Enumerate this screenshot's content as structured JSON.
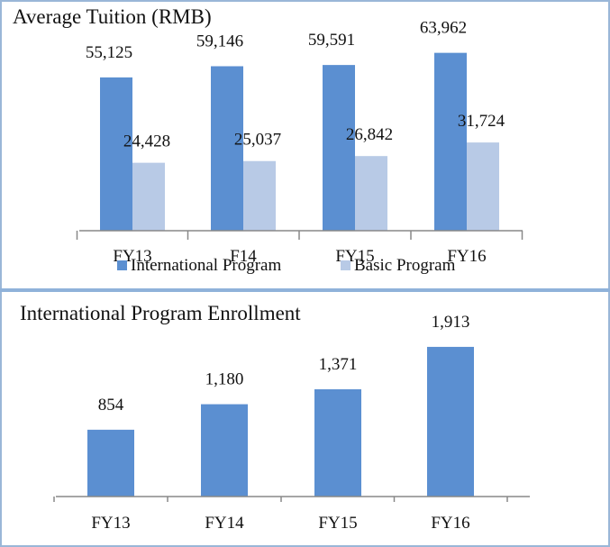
{
  "chart_data": [
    {
      "type": "bar",
      "title": "Average Tuition (RMB)",
      "categories": [
        "FY13",
        "F14",
        "FY15",
        "FY16"
      ],
      "series": [
        {
          "name": "International Program",
          "color": "#5b8fd1",
          "values": [
            55125,
            59146,
            59591,
            63962
          ],
          "labels": [
            "55,125",
            "59,146",
            "59,591",
            "63,962"
          ]
        },
        {
          "name": "Basic Program",
          "color": "#b8cae6",
          "values": [
            24428,
            25037,
            26842,
            31724
          ],
          "labels": [
            "24,428",
            "25,037",
            "26,842",
            "31,724"
          ]
        }
      ],
      "ylim": [
        0,
        70000
      ],
      "grid": false,
      "legend": "bottom"
    },
    {
      "type": "bar",
      "title": "International Program Enrollment",
      "categories": [
        "FY13",
        "FY14",
        "FY15",
        "FY16"
      ],
      "series": [
        {
          "name": "International Program",
          "color": "#5b8fd1",
          "values": [
            854,
            1180,
            1371,
            1913
          ],
          "labels": [
            "854",
            "1,180",
            "1,371",
            "1,913"
          ]
        }
      ],
      "ylim": [
        0,
        2200
      ],
      "grid": false,
      "legend": "none"
    }
  ]
}
